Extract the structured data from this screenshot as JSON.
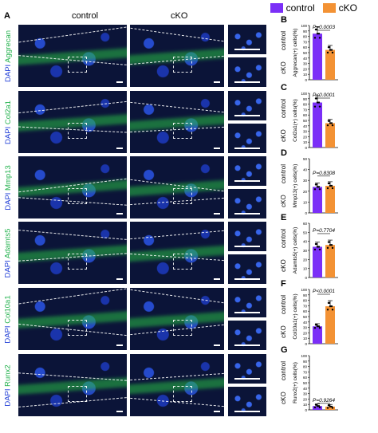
{
  "legend": [
    {
      "label": "control",
      "color": "#7b2ff7"
    },
    {
      "label": "cKO",
      "color": "#f39234"
    }
  ],
  "panel_letters": {
    "A": "A",
    "B": "B",
    "C": "C",
    "D": "D",
    "E": "E",
    "F": "F",
    "G": "G"
  },
  "column_headers": {
    "control": "control",
    "cko": "cKO"
  },
  "rows": [
    {
      "dapi": "DAPI",
      "marker": "Aggrecan"
    },
    {
      "dapi": "DAPI",
      "marker": "Col2a1"
    },
    {
      "dapi": "DAPI",
      "marker": "Mmp13"
    },
    {
      "dapi": "DAPI",
      "marker": "Adamts5"
    },
    {
      "dapi": "DAPI",
      "marker": "Col10a1"
    },
    {
      "dapi": "DAPI",
      "marker": "Runx2"
    }
  ],
  "colors": {
    "control": "#7b2ff7",
    "cko": "#f39234"
  },
  "chart_data": [
    {
      "type": "bar",
      "panel": "B",
      "categories": [
        "control",
        "cKO"
      ],
      "values": [
        85,
        55
      ],
      "ylabel": "Aggrecan(+) cells(%)",
      "ylim": [
        0,
        100
      ],
      "yticks": [
        "0",
        "10",
        "20",
        "30",
        "40",
        "50",
        "60",
        "70",
        "80",
        "90",
        "100"
      ],
      "pvalue": "P=0.0003"
    },
    {
      "type": "bar",
      "panel": "C",
      "categories": [
        "control",
        "cKO"
      ],
      "values": [
        83,
        45
      ],
      "ylabel": "Col2a1(+) cells(%)",
      "ylim": [
        0,
        100
      ],
      "yticks": [
        "0",
        "10",
        "20",
        "30",
        "40",
        "50",
        "60",
        "70",
        "80",
        "90",
        "100"
      ],
      "pvalue": "P<0.0001"
    },
    {
      "type": "bar",
      "panel": "D",
      "categories": [
        "control",
        "cKO"
      ],
      "values": [
        24,
        25
      ],
      "ylabel": "Mmp13(+) cells(%)",
      "ylim": [
        0,
        50
      ],
      "yticks": [
        "0",
        "10",
        "20",
        "30",
        "40",
        "50"
      ],
      "pvalue": "P=0.8308"
    },
    {
      "type": "bar",
      "panel": "E",
      "categories": [
        "control",
        "cKO"
      ],
      "values": [
        34,
        36
      ],
      "ylabel": "Adamts5(+) cells(%)",
      "ylim": [
        0,
        60
      ],
      "yticks": [
        "0",
        "10",
        "20",
        "30",
        "40",
        "50",
        "60"
      ],
      "pvalue": "P=0.7704"
    },
    {
      "type": "bar",
      "panel": "F",
      "categories": [
        "control",
        "cKO"
      ],
      "values": [
        32,
        69
      ],
      "ylabel": "Col10a1(+) cells(%)",
      "ylim": [
        0,
        100
      ],
      "yticks": [
        "0",
        "10",
        "20",
        "30",
        "40",
        "50",
        "60",
        "70",
        "80",
        "90",
        "100"
      ],
      "pvalue": "P<0.0001"
    },
    {
      "type": "bar",
      "panel": "G",
      "categories": [
        "control",
        "cKO"
      ],
      "values": [
        7,
        6
      ],
      "ylabel": "Runx2(+) cells(%)",
      "ylim": [
        0,
        100
      ],
      "yticks": [
        "0",
        "10",
        "20",
        "30",
        "40",
        "50",
        "60",
        "70",
        "80",
        "90",
        "100"
      ],
      "pvalue": "P=0.9264"
    }
  ]
}
